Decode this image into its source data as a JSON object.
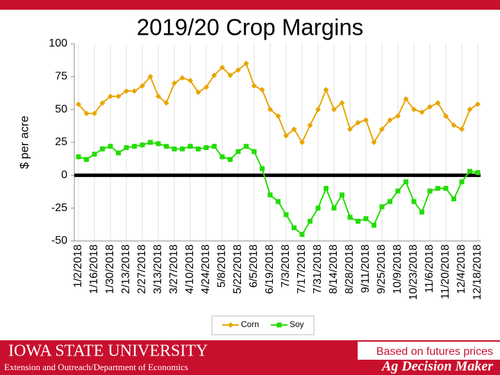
{
  "chart_data": {
    "type": "line",
    "title": "2019/20 Crop Margins",
    "ylabel": "$ per acre",
    "categories": [
      "1/2/2018",
      null,
      "1/16/2018",
      null,
      "1/30/2018",
      null,
      "2/13/2018",
      null,
      "2/27/2018",
      null,
      "3/13/2018",
      null,
      "3/27/2018",
      null,
      "4/10/2018",
      null,
      "4/24/2018",
      null,
      "5/8/2018",
      null,
      "5/22/2018",
      null,
      "6/5/2018",
      null,
      "6/19/2018",
      null,
      "7/3/2018",
      null,
      "7/17/2018",
      null,
      "7/31/2018",
      null,
      "8/14/2018",
      null,
      "8/28/2018",
      null,
      "9/11/2018",
      null,
      "9/25/2018",
      null,
      "10/9/2018",
      null,
      "10/23/2018",
      null,
      "11/6/2018",
      null,
      "11/20/2018",
      null,
      "12/4/2018",
      null,
      "12/18/2018"
    ],
    "series": [
      {
        "name": "Corn",
        "color": "#e8a500",
        "marker": "diamond",
        "values": [
          54,
          47,
          47,
          55,
          60,
          60,
          64,
          64,
          68,
          75,
          60,
          55,
          70,
          74,
          72,
          63,
          67,
          76,
          82,
          76,
          80,
          85,
          68,
          65,
          50,
          45,
          30,
          35,
          25,
          38,
          50,
          65,
          50,
          55,
          35,
          40,
          42,
          25,
          35,
          42,
          45,
          58,
          50,
          48,
          52,
          55,
          45,
          38,
          35,
          50,
          54
        ]
      },
      {
        "name": "Soy",
        "color": "#22dd00",
        "marker": "square",
        "values": [
          14,
          12,
          16,
          20,
          22,
          17,
          21,
          22,
          23,
          25,
          24,
          22,
          20,
          20,
          22,
          20,
          21,
          22,
          14,
          12,
          18,
          22,
          18,
          5,
          -15,
          -20,
          -30,
          -40,
          -45,
          -35,
          -25,
          -10,
          -25,
          -15,
          -32,
          -35,
          -33,
          -38,
          -24,
          -20,
          -12,
          -5,
          -20,
          -28,
          -12,
          -10,
          -10,
          -18,
          -5,
          3,
          2
        ]
      }
    ],
    "ylim": [
      -50,
      100
    ],
    "yticks": [
      -50,
      -25,
      0,
      25,
      50,
      75,
      100
    ],
    "grid": true
  },
  "footer": {
    "university": "Iowa State University",
    "department": "Extension and Outreach/Department of Economics",
    "note": "Based on futures prices",
    "brand": "Ag Decision Maker"
  }
}
